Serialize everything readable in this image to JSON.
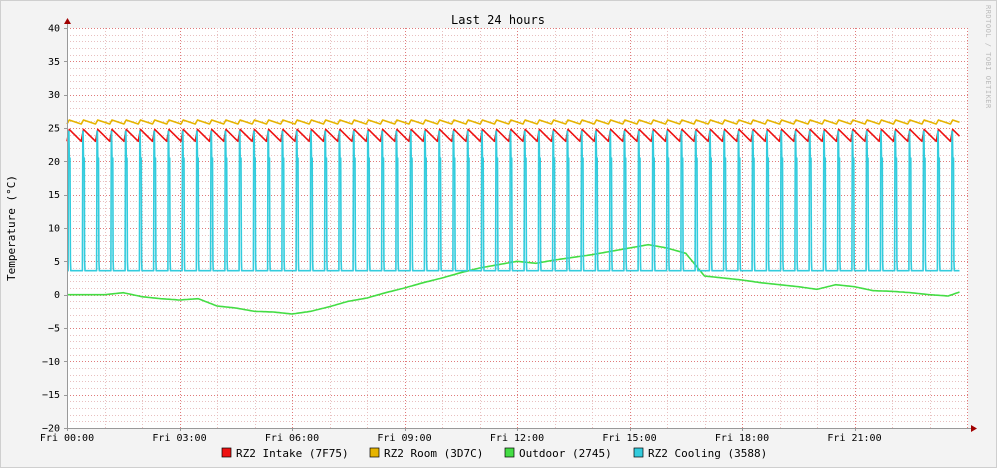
{
  "chart_data": {
    "type": "line",
    "title": "Last 24 hours",
    "ylabel": "Temperature (°C)",
    "watermark": "RRDTOOL / TOBI OETIKER",
    "ylim": [
      -20,
      40
    ],
    "y_ticks": [
      "40",
      "35",
      "30",
      "25",
      "20",
      "15",
      "10",
      "5",
      "0",
      "−5",
      "−10",
      "−15",
      "−20"
    ],
    "x_ticks": [
      "Fri 00:00",
      "Fri 03:00",
      "Fri 06:00",
      "Fri 09:00",
      "Fri 12:00",
      "Fri 15:00",
      "Fri 18:00",
      "Fri 21:00"
    ],
    "x_range_hours": [
      0,
      23.8
    ],
    "grid": true,
    "colors": {
      "background": "#f3f3f3",
      "canvas": "#ffffff",
      "minor_grid": "#e8c0c0",
      "major_grid": "#e07a7a"
    },
    "series": [
      {
        "name": "RZ2 Intake (7F75)",
        "color": "#ee1111",
        "pattern": "sawtooth",
        "low": 23.0,
        "high": 24.8,
        "period_hours": 0.38
      },
      {
        "name": "RZ2 Room (3D7C)",
        "color": "#e6b400",
        "pattern": "sawtooth",
        "low": 25.6,
        "high": 26.2,
        "period_hours": 0.38
      },
      {
        "name": "Outdoor (2745)",
        "color": "#44dd44",
        "pattern": "line",
        "x": [
          0,
          1,
          1.5,
          2,
          2.5,
          3,
          3.5,
          4,
          4.5,
          5,
          5.5,
          6,
          6.5,
          7,
          7.5,
          8,
          8.5,
          9,
          9.5,
          10,
          10.5,
          11,
          11.5,
          12,
          12.5,
          13,
          13.5,
          14,
          14.5,
          15,
          15.5,
          16,
          16.5,
          17,
          17.5,
          18,
          18.5,
          19,
          19.5,
          20,
          20.5,
          21,
          21.5,
          22,
          22.5,
          23,
          23.5,
          23.8
        ],
        "values": [
          0,
          0,
          0.3,
          -0.3,
          -0.6,
          -0.8,
          -0.6,
          -1.7,
          -2.0,
          -2.5,
          -2.6,
          -2.9,
          -2.5,
          -1.8,
          -1.0,
          -0.5,
          0.3,
          1.0,
          1.8,
          2.5,
          3.3,
          4.0,
          4.5,
          5.0,
          4.7,
          5.2,
          5.6,
          6.0,
          6.5,
          7.0,
          7.5,
          7.0,
          6.2,
          2.8,
          2.5,
          2.2,
          1.8,
          1.5,
          1.2,
          0.8,
          1.5,
          1.2,
          0.6,
          0.5,
          0.3,
          0.0,
          -0.2,
          0.4
        ]
      },
      {
        "name": "RZ2 Cooling (3588)",
        "color": "#33ccdd",
        "pattern": "pulse",
        "low": 3.6,
        "high": 24.5,
        "period_hours": 0.38
      }
    ],
    "legend_position": "bottom-center"
  }
}
